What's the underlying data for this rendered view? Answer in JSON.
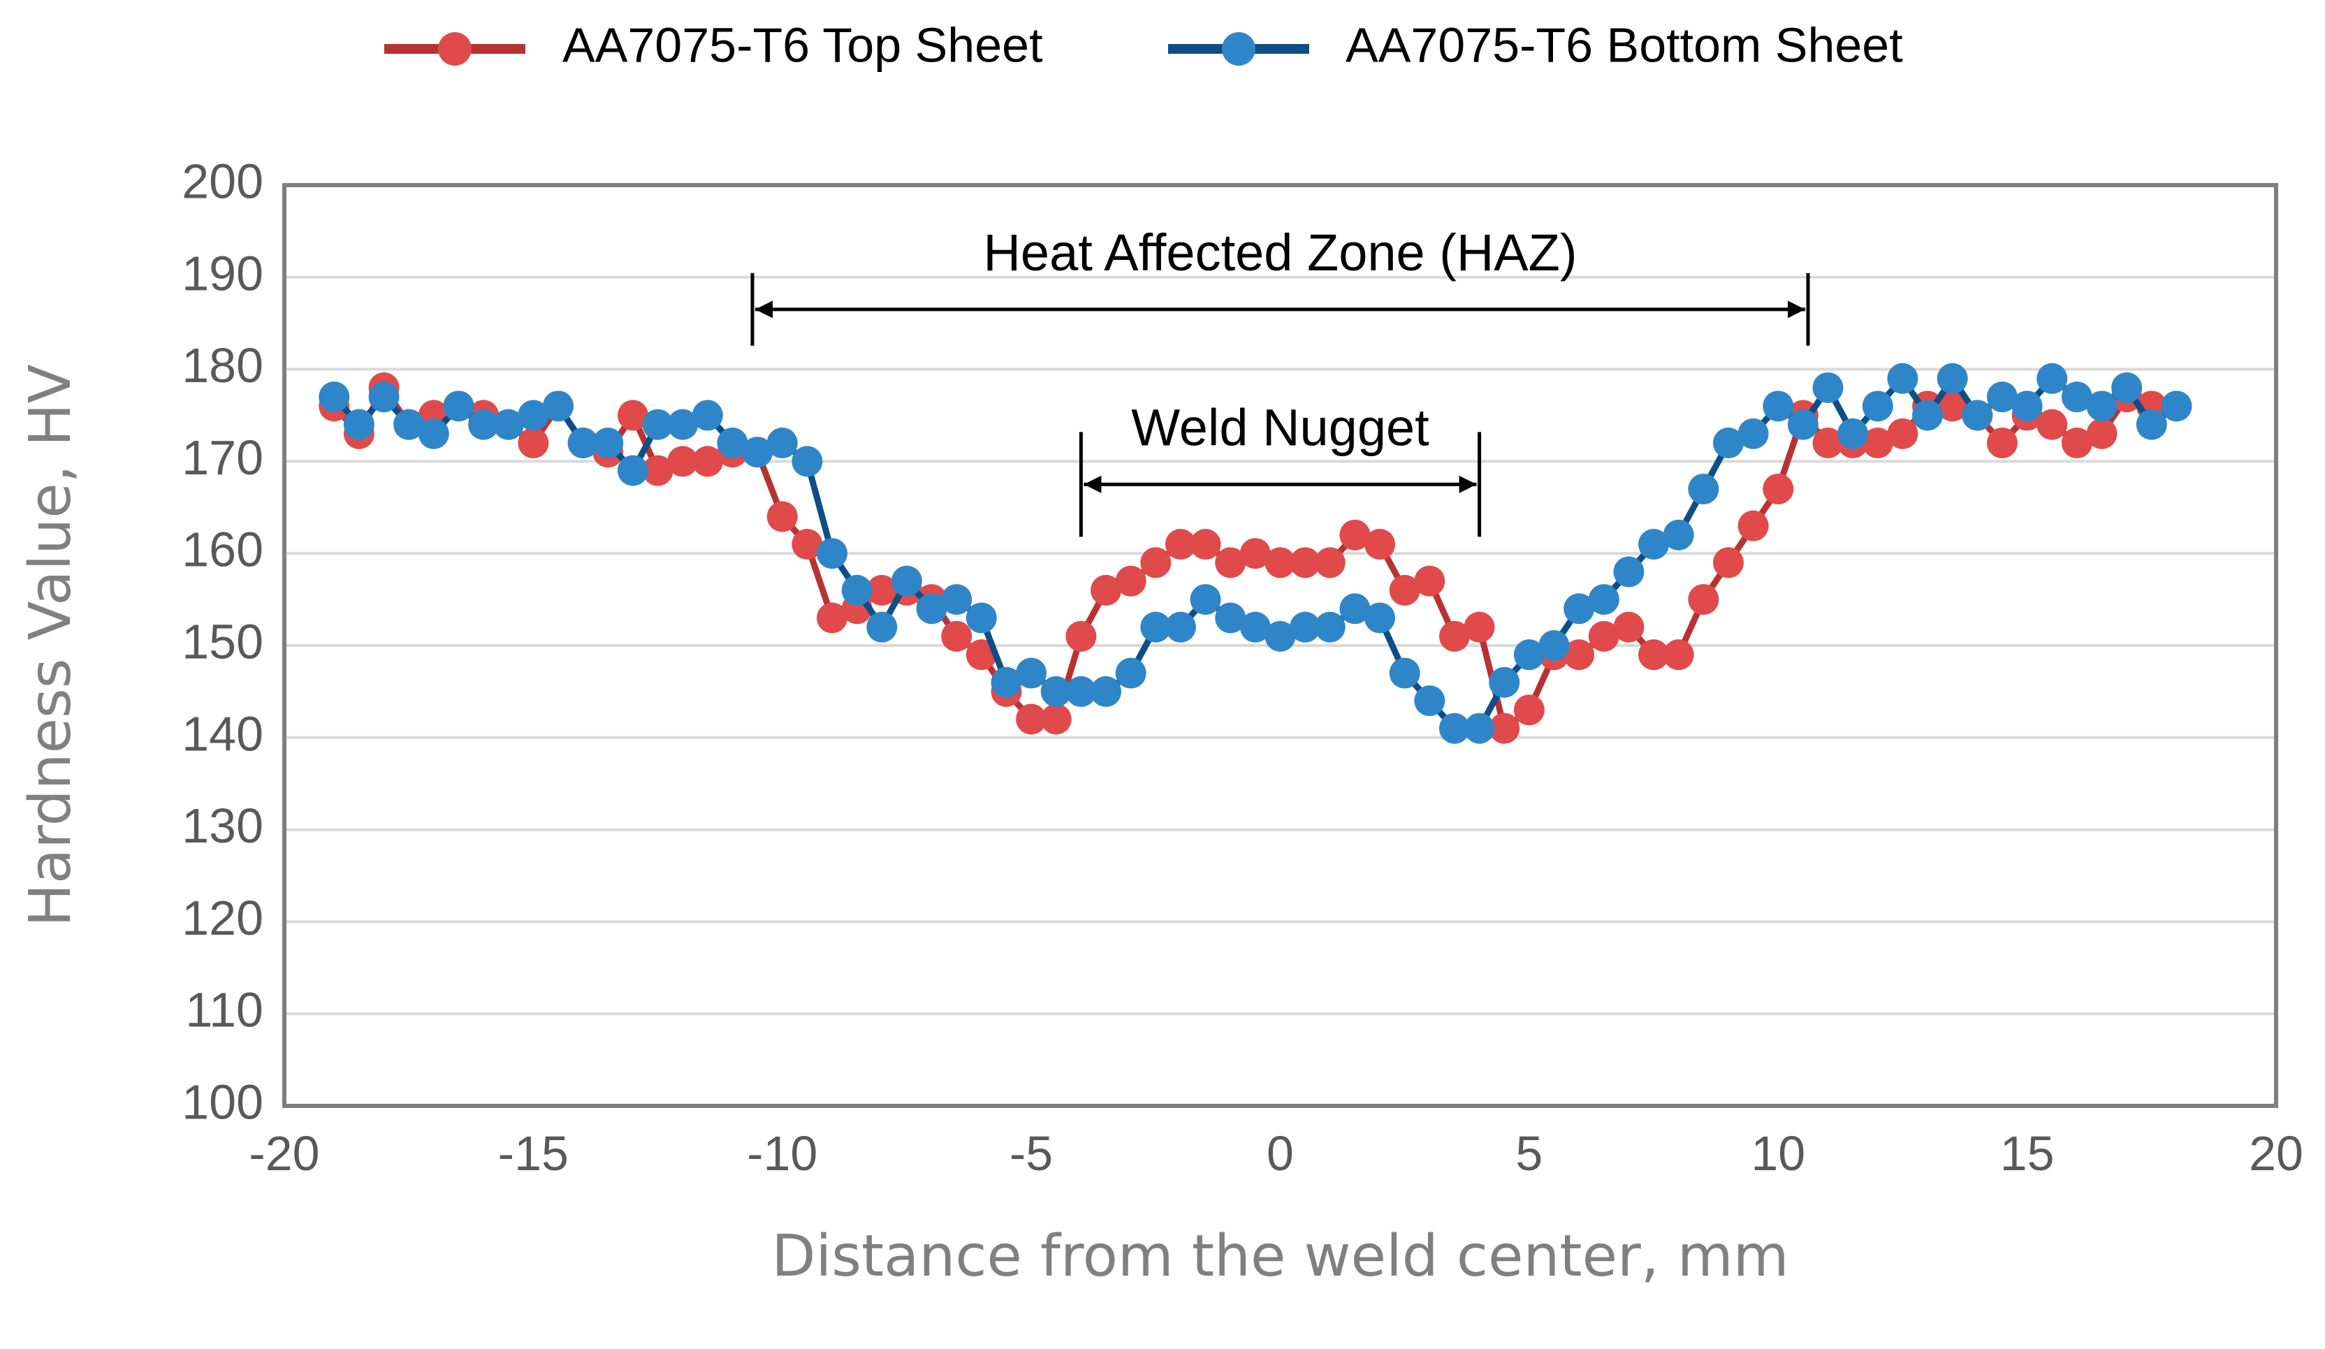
{
  "chart_data": {
    "type": "line",
    "title": "",
    "xlabel": "Distance from the weld center, mm",
    "ylabel": "Hardness Value, HV",
    "xlim": [
      -20,
      20
    ],
    "ylim": [
      100,
      200
    ],
    "xticks": [
      -20,
      -15,
      -10,
      -5,
      0,
      5,
      10,
      15,
      20
    ],
    "yticks": [
      100,
      110,
      120,
      130,
      140,
      150,
      160,
      170,
      180,
      190,
      200
    ],
    "xtick_labels": [
      "-20",
      "-15",
      "-10",
      "-5",
      "0",
      "5",
      "10",
      "15",
      "20"
    ],
    "ytick_labels": [
      "100",
      "110",
      "120",
      "130",
      "140",
      "150",
      "160",
      "170",
      "180",
      "190",
      "200"
    ],
    "grid": "horizontal",
    "legend_position": "top",
    "series": [
      {
        "name": "AA7075-T6 Top Sheet",
        "color": "#e04a4a",
        "line_color": "#b83232",
        "x": [
          -19,
          -18.5,
          -18,
          -17.5,
          -17,
          -16.5,
          -16,
          -15.5,
          -15,
          -14.5,
          -14,
          -13.5,
          -13,
          -12.5,
          -12,
          -11.5,
          -11,
          -10.5,
          -10,
          -9.5,
          -9,
          -8.5,
          -8,
          -7.5,
          -7,
          -6.5,
          -6,
          -5.5,
          -5,
          -4.5,
          -4,
          -3.5,
          -3,
          -2.5,
          -2,
          -1.5,
          -1,
          -0.5,
          0,
          0.5,
          1,
          1.5,
          2,
          2.5,
          3,
          3.5,
          4,
          4.5,
          5,
          5.5,
          6,
          6.5,
          7,
          7.5,
          8,
          8.5,
          9,
          9.5,
          10,
          10.5,
          11,
          11.5,
          12,
          12.5,
          13,
          13.5,
          14,
          14.5,
          15,
          15.5,
          16,
          16.5,
          17,
          17.5,
          18
        ],
        "values": [
          176,
          173,
          178,
          174,
          175,
          176,
          175,
          174,
          172,
          176,
          172,
          171,
          175,
          169,
          170,
          170,
          171,
          171,
          164,
          161,
          153,
          154,
          156,
          156,
          155,
          151,
          149,
          145,
          142,
          142,
          151,
          156,
          157,
          159,
          161,
          161,
          159,
          160,
          159,
          159,
          159,
          162,
          161,
          156,
          157,
          151,
          152,
          141,
          143,
          149,
          149,
          151,
          152,
          149,
          149,
          155,
          159,
          163,
          167,
          175,
          172,
          172,
          172,
          173,
          176,
          176,
          175,
          172,
          175,
          174,
          172,
          173,
          177,
          176,
          176
        ]
      },
      {
        "name": "AA7075-T6 Bottom Sheet",
        "color": "#2e86c9",
        "line_color": "#0f4d86",
        "x": [
          -19,
          -18.5,
          -18,
          -17.5,
          -17,
          -16.5,
          -16,
          -15.5,
          -15,
          -14.5,
          -14,
          -13.5,
          -13,
          -12.5,
          -12,
          -11.5,
          -11,
          -10.5,
          -10,
          -9.5,
          -9,
          -8.5,
          -8,
          -7.5,
          -7,
          -6.5,
          -6,
          -5.5,
          -5,
          -4.5,
          -4,
          -3.5,
          -3,
          -2.5,
          -2,
          -1.5,
          -1,
          -0.5,
          0,
          0.5,
          1,
          1.5,
          2,
          2.5,
          3,
          3.5,
          4,
          4.5,
          5,
          5.5,
          6,
          6.5,
          7,
          7.5,
          8,
          8.5,
          9,
          9.5,
          10,
          10.5,
          11,
          11.5,
          12,
          12.5,
          13,
          13.5,
          14,
          14.5,
          15,
          15.5,
          16,
          16.5,
          17,
          17.5,
          18
        ],
        "values": [
          177,
          174,
          177,
          174,
          173,
          176,
          174,
          174,
          175,
          176,
          172,
          172,
          169,
          174,
          174,
          175,
          172,
          171,
          172,
          170,
          160,
          156,
          152,
          157,
          154,
          155,
          153,
          146,
          147,
          145,
          145,
          145,
          147,
          152,
          152,
          155,
          153,
          152,
          151,
          152,
          152,
          154,
          153,
          147,
          144,
          141,
          141,
          146,
          149,
          150,
          154,
          155,
          158,
          161,
          162,
          167,
          172,
          173,
          176,
          174,
          178,
          173,
          176,
          179,
          175,
          179,
          175,
          177,
          176,
          179,
          177,
          176,
          178,
          174,
          176
        ]
      }
    ],
    "annotations": [
      {
        "text": "Heat Affected Zone (HAZ)",
        "x_range": [
          -10.6,
          10.6
        ],
        "y": 186.5
      },
      {
        "text": "Weld Nugget",
        "x_range": [
          -4,
          4
        ],
        "y": 167.5
      }
    ]
  }
}
